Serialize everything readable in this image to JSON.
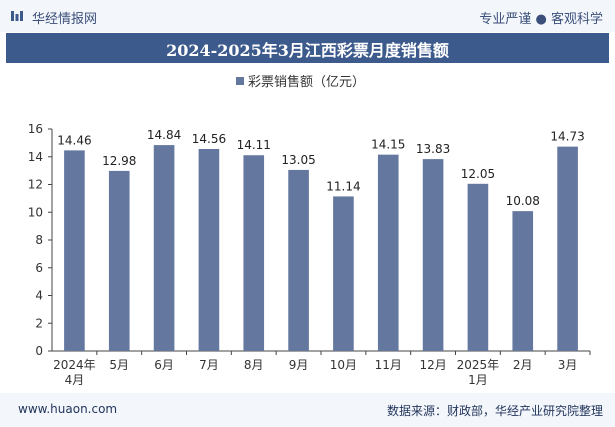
{
  "header": {
    "brand": "华经情报网",
    "tagline": "专业严谨 ● 客观科学"
  },
  "title": "2024-2025年3月江西彩票月度销售额",
  "footer": {
    "url": "www.huaon.com",
    "source": "数据来源：财政部，华经产业研究院整理"
  },
  "colors": {
    "bar": "#64779f",
    "title_bg": "#3c5a8c",
    "axis": "#444444"
  },
  "chart_data": {
    "type": "bar",
    "categories": [
      "2024年\n4月",
      "5月",
      "6月",
      "7月",
      "8月",
      "9月",
      "10月",
      "11月",
      "12月",
      "2025年\n1月",
      "2月",
      "3月"
    ],
    "series": [
      {
        "name": "彩票销售额（亿元）",
        "values": [
          14.46,
          12.98,
          14.84,
          14.56,
          14.11,
          13.05,
          11.14,
          14.15,
          13.83,
          12.05,
          10.08,
          14.73
        ]
      }
    ],
    "ylim": [
      0,
      16
    ],
    "yticks": [
      0,
      2,
      4,
      6,
      8,
      10,
      12,
      14,
      16
    ],
    "legend": "top-center",
    "grid": false
  }
}
